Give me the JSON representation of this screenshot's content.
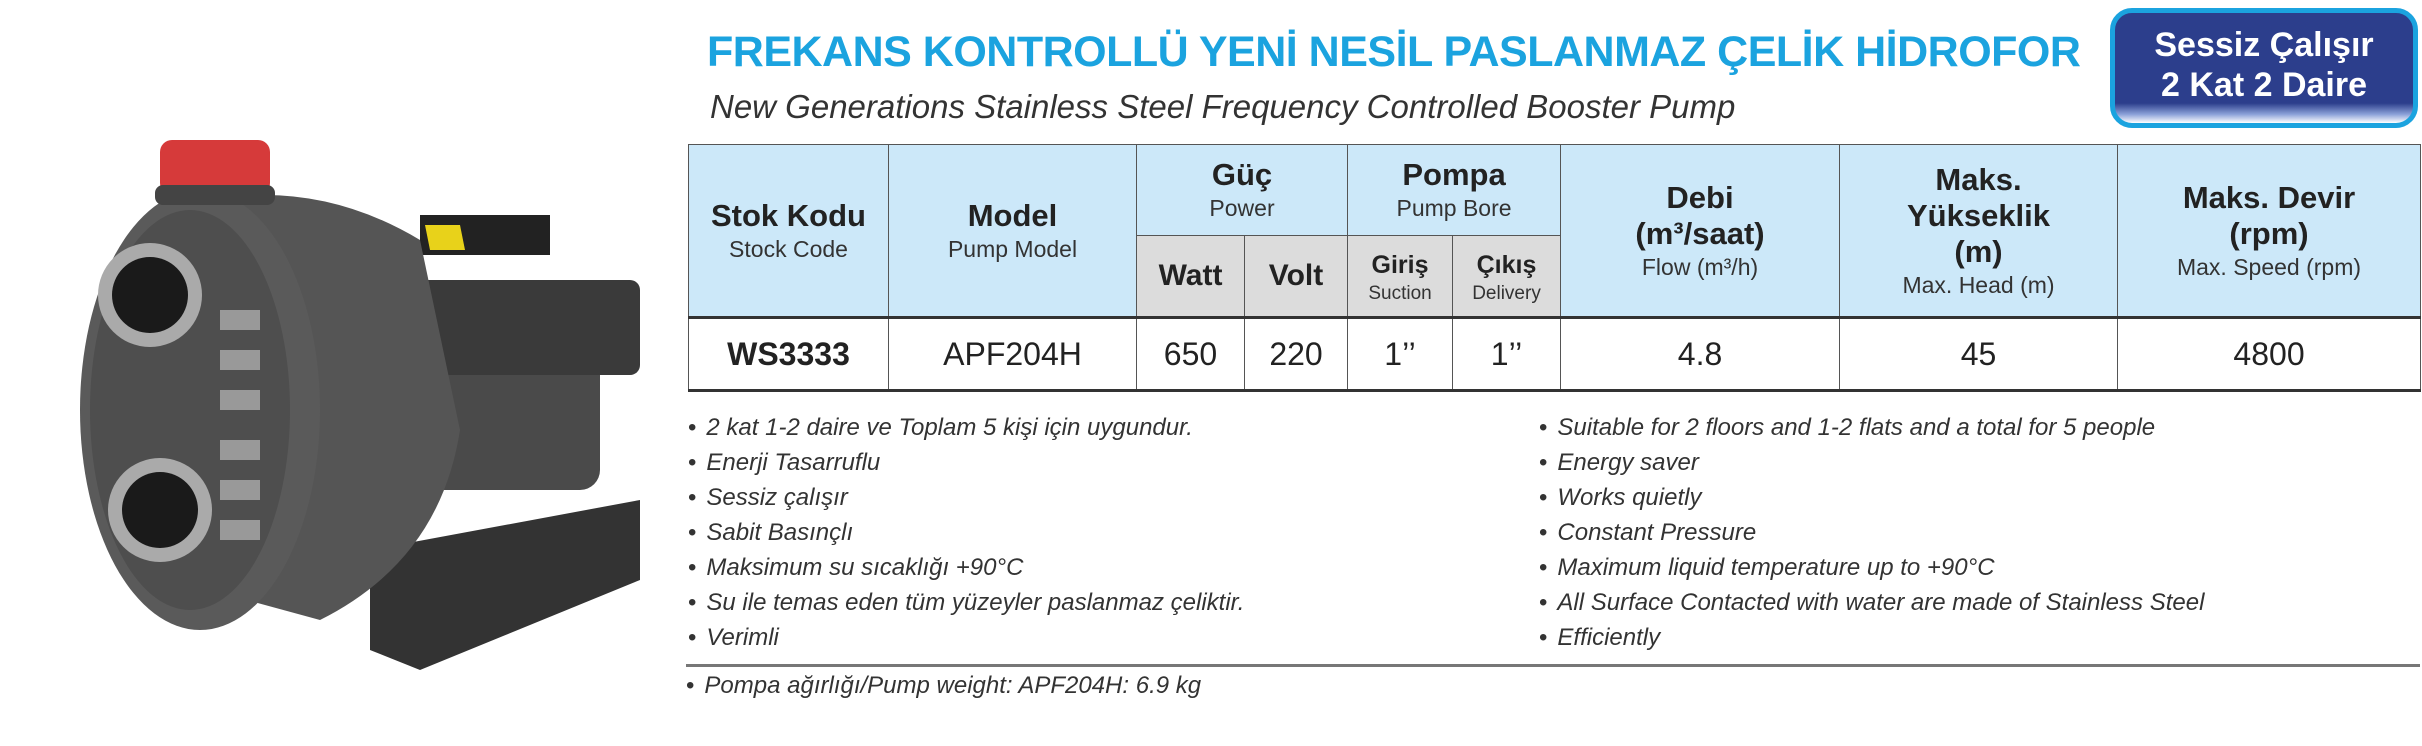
{
  "header": {
    "title": "FREKANS KONTROLLÜ YENİ NESİL PASLANMAZ ÇELİK HİDROFOR",
    "subtitle": "New Generations Stainless Steel Frequency Controlled Booster Pump",
    "badge_line1": "Sessiz Çalışır",
    "badge_line2": "2 Kat 2 Daire"
  },
  "colors": {
    "title": "#1ba3df",
    "badge": "#2c3e8c",
    "header_bg": "#cce8f9",
    "subheader_bg": "#dcdcdc"
  },
  "table": {
    "stock_code": {
      "tr": "Stok Kodu",
      "en": "Stock Code"
    },
    "model": {
      "tr": "Model",
      "en": "Pump Model"
    },
    "power": {
      "tr": "Güç",
      "en": "Power",
      "watt": "Watt",
      "volt": "Volt"
    },
    "bore": {
      "tr": "Pompa",
      "en": "Pump Bore",
      "suction_tr": "Giriş",
      "suction_en": "Suction",
      "delivery_tr": "Çıkış",
      "delivery_en": "Delivery"
    },
    "flow": {
      "tr": "Debi",
      "unit": "(m³/saat)",
      "en": "Flow (m³/h)"
    },
    "head": {
      "tr1": "Maks.",
      "tr2": "Yükseklik",
      "unit": "(m)",
      "en": "Max. Head (m)"
    },
    "speed": {
      "tr": "Maks. Devir",
      "unit": "(rpm)",
      "en": "Max. Speed (rpm)"
    },
    "rows": [
      {
        "stock": "WS3333",
        "model": "APF204H",
        "watt": "650",
        "volt": "220",
        "suction": "1’’",
        "delivery": "1’’",
        "flow": "4.8",
        "head": "45",
        "speed": "4800"
      }
    ]
  },
  "features_tr": [
    "2 kat 1-2 daire ve Toplam 5 kişi için uygundur.",
    "Enerji Tasarruflu",
    "Sessiz çalışır",
    "Sabit Basınçlı",
    "Maksimum su sıcaklığı +90°C",
    "Su ile temas eden tüm yüzeyler paslanmaz çeliktir.",
    "Verimli"
  ],
  "features_en": [
    "Suitable for 2 floors and 1-2 flats and a total for 5 people",
    "Energy saver",
    "Works quietly",
    "Constant Pressure",
    "Maximum liquid temperature  up to +90°C",
    "All Surface Contacted with water are made of Stainless Steel",
    "Efficiently"
  ],
  "weight": "Pompa ağırlığı/Pump weight: APF204H: 6.9 kg"
}
